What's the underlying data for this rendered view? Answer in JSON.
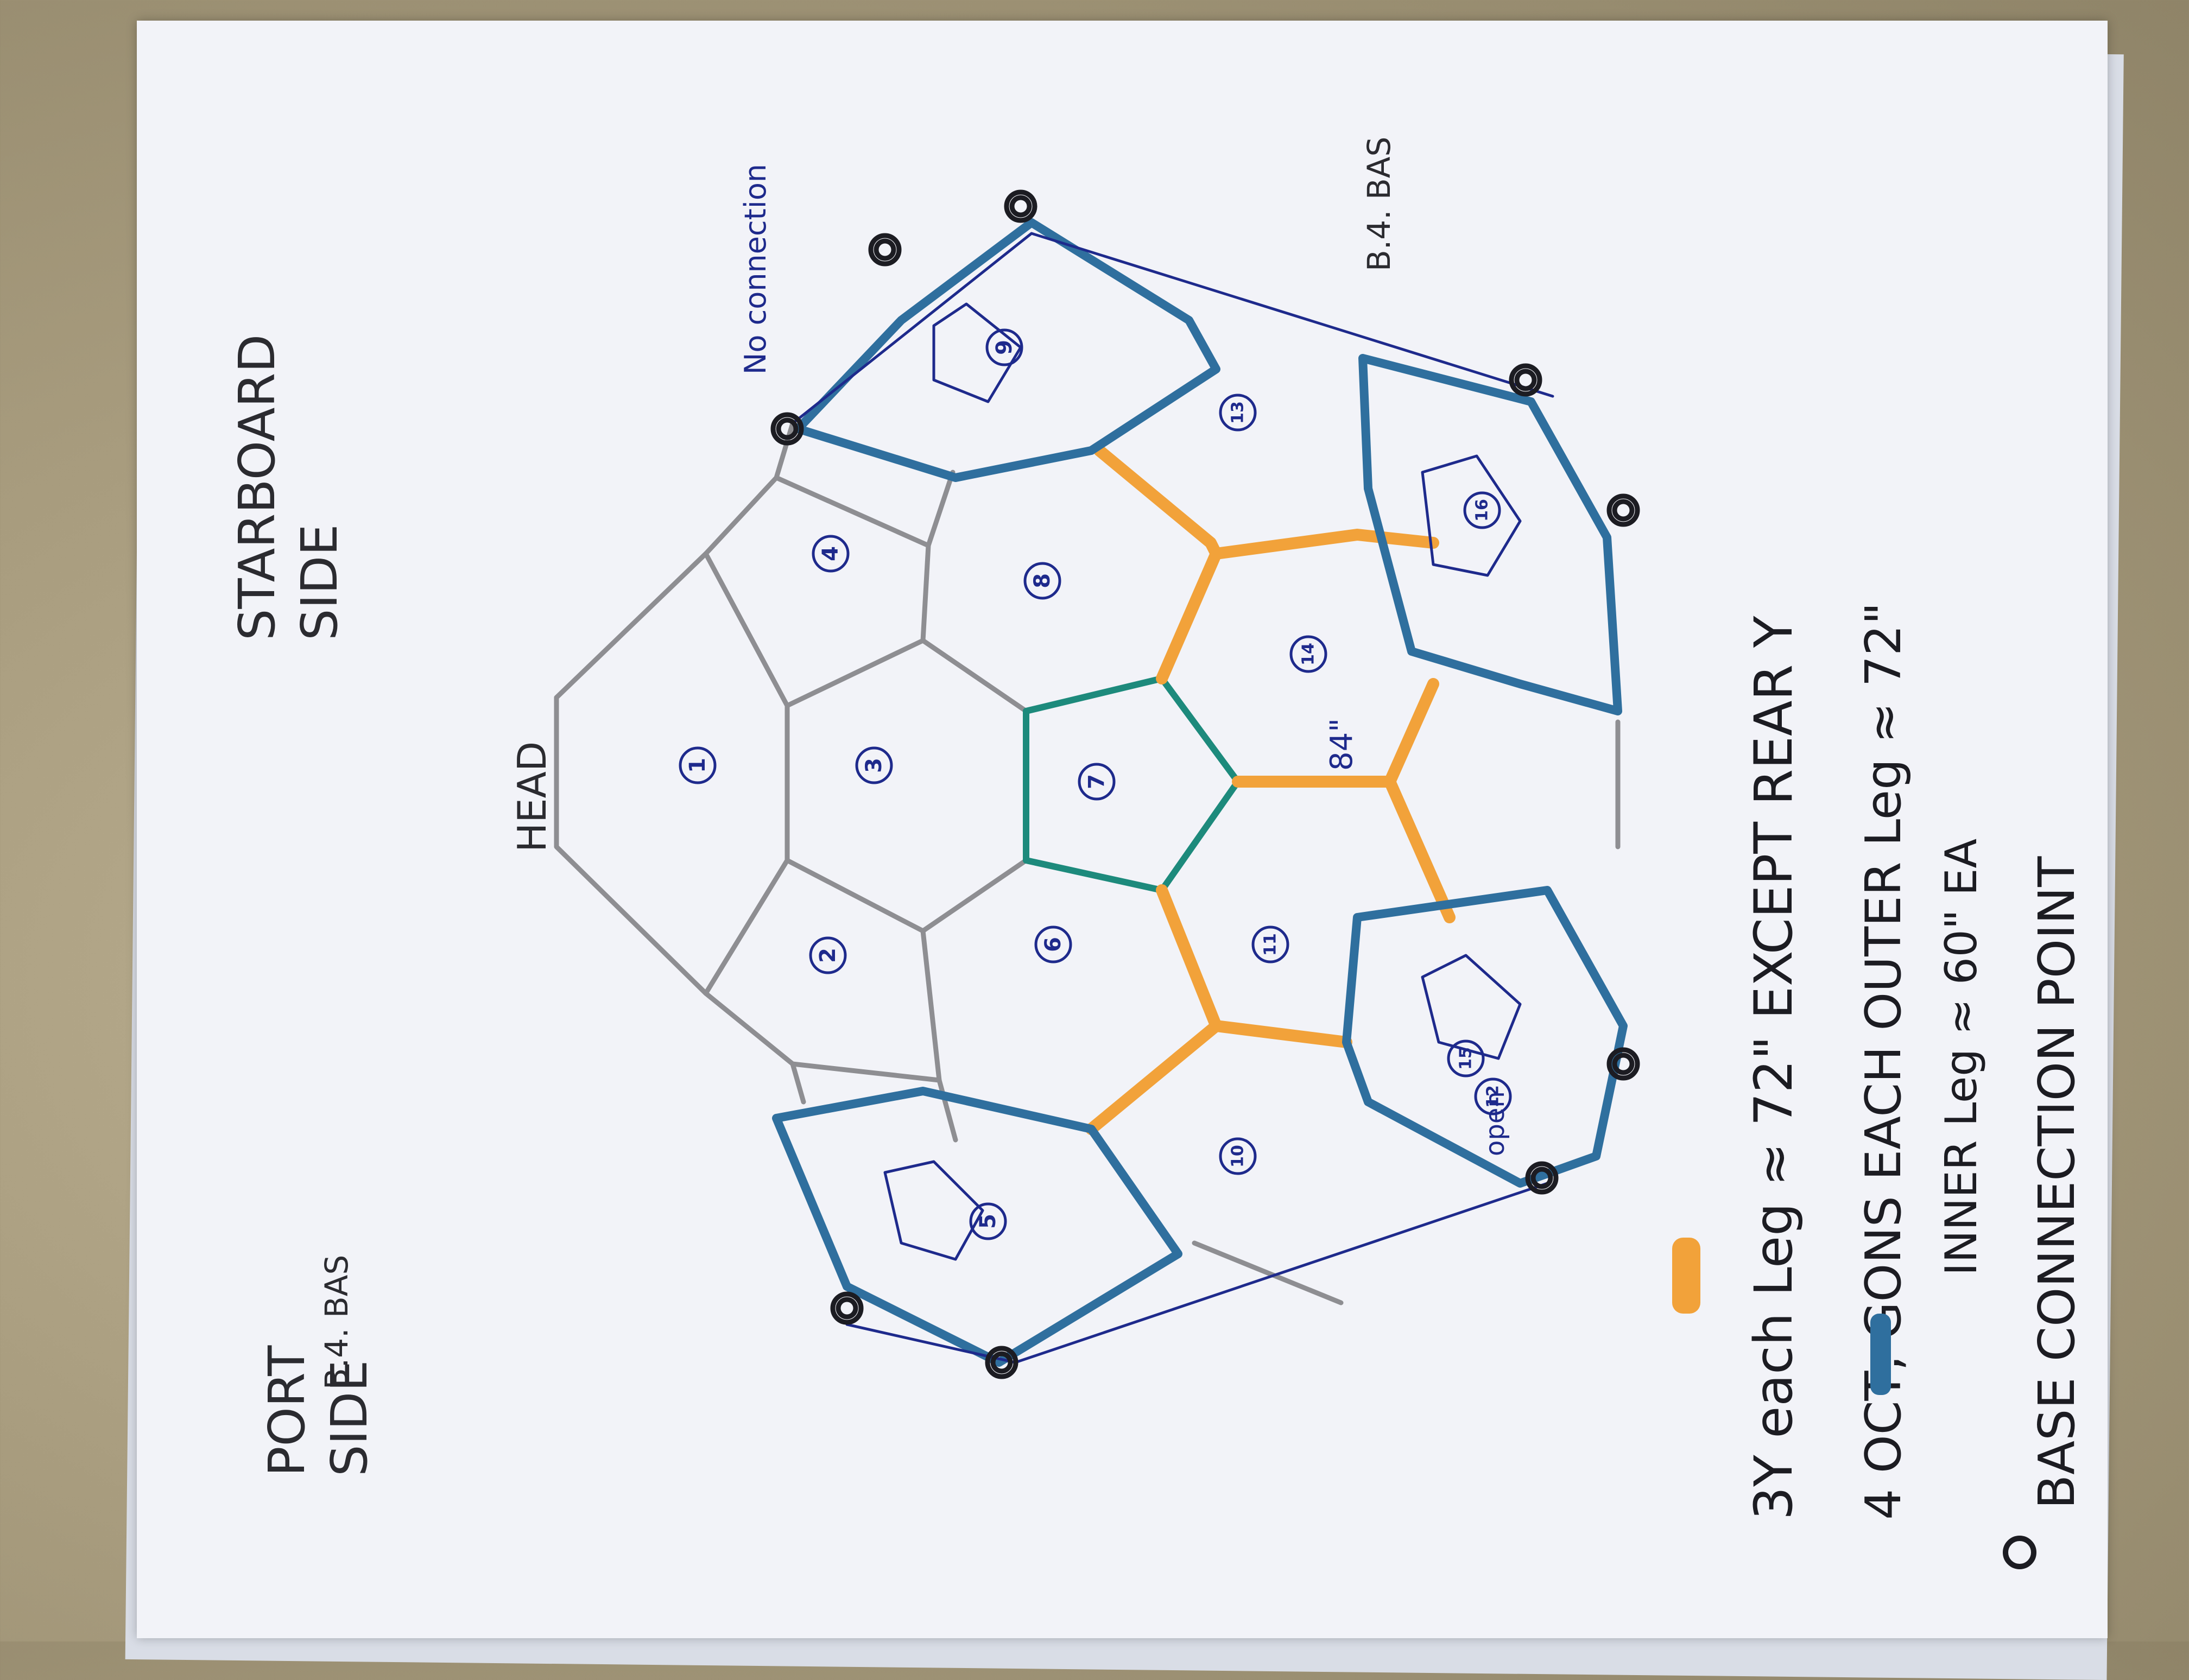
{
  "colors": {
    "gray_edge": "#8e8e92",
    "orange_edge": "#f2a23a",
    "teal_edge": "#1d8a7c",
    "blue_edge": "#2f6f9e",
    "ink_blue": "#1e2a8c",
    "ink_black": "#1c1c22"
  },
  "side_labels": {
    "port": "PORT\nSIDE",
    "starboard": "STARBOARD\nSIDE"
  },
  "head_label": "HEAD",
  "measure_label": "84\"",
  "no_connection_label": "No connection",
  "open_label": "open",
  "base_labels": {
    "left": "B.4. BAS",
    "right": "B.4. BAS"
  },
  "cells": [
    "1",
    "2",
    "3",
    "4",
    "5",
    "6",
    "7",
    "8",
    "9",
    "10",
    "11",
    "12",
    "13",
    "14",
    "15",
    "16"
  ],
  "legend": {
    "orange_line": "3Y  each Leg ≈ 72\"  EXCEPT REAR Y",
    "blue_line1": "4 OCT, GONS  EACH OUTER Leg ≈ 72\"",
    "blue_line2": "INNER Leg ≈ 60\" EA",
    "base_line": "BASE  CONNECTION  POINT"
  }
}
